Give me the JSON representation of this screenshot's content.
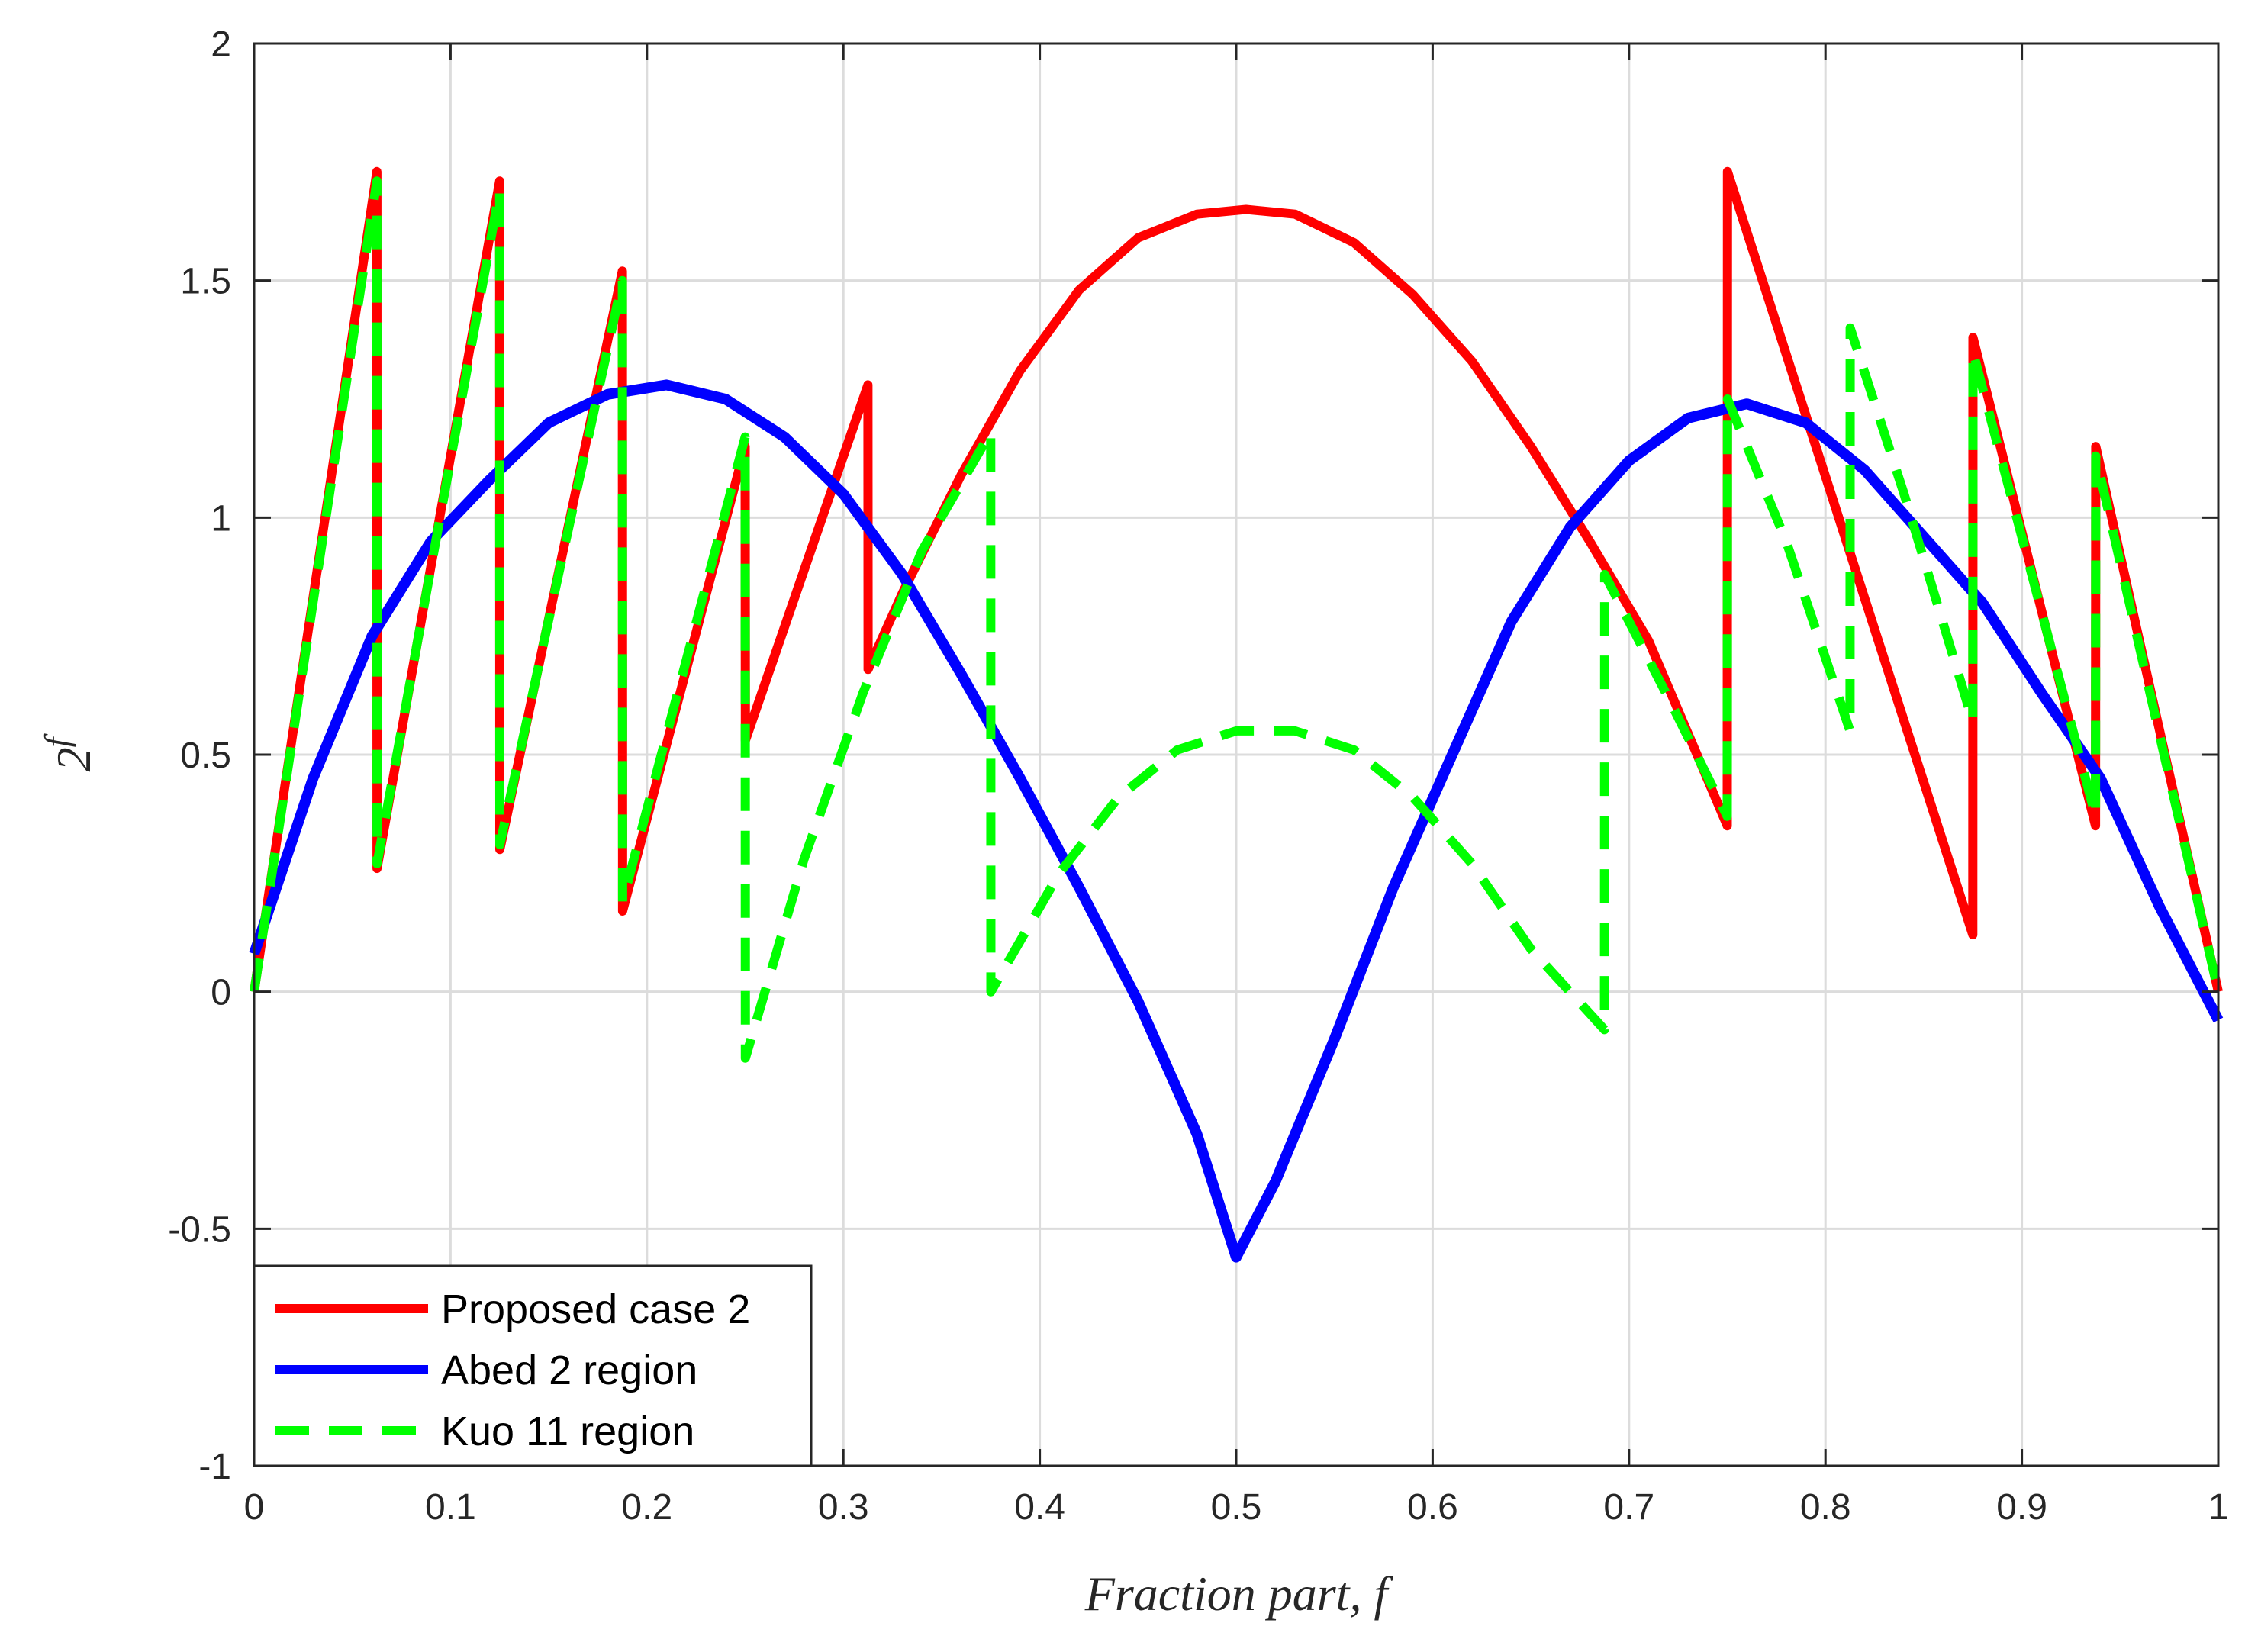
{
  "chart_data": {
    "type": "line",
    "title": "",
    "xlabel": "Fraction part, f",
    "ylabel": "2",
    "ylabel_superscript": "f",
    "xlim": [
      0,
      1
    ],
    "ylim": [
      -1,
      2
    ],
    "xticks": [
      0,
      0.1,
      0.2,
      0.3,
      0.4,
      0.5,
      0.6,
      0.7,
      0.8,
      0.9,
      1
    ],
    "xtick_labels": [
      "0",
      "0.1",
      "0.2",
      "0.3",
      "0.4",
      "0.5",
      "0.6",
      "0.7",
      "0.8",
      "0.9",
      "1"
    ],
    "yticks": [
      -1,
      -0.5,
      0,
      0.5,
      1,
      1.5,
      2
    ],
    "ytick_labels": [
      "-1",
      "-0.5",
      "0",
      "0.5",
      "1",
      "1.5",
      "2"
    ],
    "grid": true,
    "legend_position": "bottom-left",
    "series": [
      {
        "name": "Proposed case 2",
        "color": "#ff0000",
        "style": "solid",
        "x": [
          0,
          0.0625,
          0.0626,
          0.125,
          0.1251,
          0.1875,
          0.1876,
          0.25,
          0.2501,
          0.3125,
          0.3126,
          0.33,
          0.36,
          0.39,
          0.42,
          0.45,
          0.48,
          0.505,
          0.53,
          0.56,
          0.59,
          0.62,
          0.65,
          0.68,
          0.71,
          0.75,
          0.7501,
          0.875,
          0.8751,
          0.9375,
          0.9376,
          1.0
        ],
        "y": [
          0,
          1.73,
          0.26,
          1.71,
          0.3,
          1.52,
          0.17,
          1.15,
          0.53,
          1.28,
          0.68,
          0.84,
          1.09,
          1.31,
          1.48,
          1.59,
          1.64,
          1.65,
          1.64,
          1.58,
          1.47,
          1.33,
          1.15,
          0.95,
          0.74,
          0.35,
          1.73,
          0.12,
          1.38,
          0.35,
          1.15,
          0.0
        ]
      },
      {
        "name": "Abed 2 region",
        "color": "#0000ff",
        "style": "solid",
        "x": [
          0.0,
          0.03,
          0.06,
          0.09,
          0.12,
          0.15,
          0.18,
          0.21,
          0.24,
          0.27,
          0.3,
          0.33,
          0.36,
          0.39,
          0.42,
          0.45,
          0.48,
          0.5,
          0.52,
          0.55,
          0.58,
          0.61,
          0.64,
          0.67,
          0.7,
          0.73,
          0.76,
          0.79,
          0.82,
          0.85,
          0.88,
          0.91,
          0.94,
          0.97,
          1.0
        ],
        "y": [
          0.08,
          0.45,
          0.75,
          0.95,
          1.08,
          1.2,
          1.26,
          1.28,
          1.25,
          1.17,
          1.05,
          0.88,
          0.67,
          0.45,
          0.22,
          -0.02,
          -0.3,
          -0.56,
          -0.4,
          -0.1,
          0.22,
          0.5,
          0.78,
          0.98,
          1.12,
          1.21,
          1.24,
          1.2,
          1.1,
          0.96,
          0.82,
          0.63,
          0.45,
          0.18,
          -0.06
        ]
      },
      {
        "name": "Kuo 11 region",
        "color": "#00ff00",
        "style": "dashed",
        "x": [
          0,
          0.0625,
          0.0626,
          0.125,
          0.1251,
          0.1875,
          0.1876,
          0.25,
          0.2501,
          0.28,
          0.31,
          0.34,
          0.375,
          0.3751,
          0.41,
          0.44,
          0.47,
          0.5,
          0.53,
          0.56,
          0.59,
          0.62,
          0.65,
          0.6875,
          0.6876,
          0.72,
          0.75,
          0.7501,
          0.78,
          0.8125,
          0.8126,
          0.84,
          0.875,
          0.8751,
          0.9375,
          0.9376,
          1.0
        ],
        "y": [
          0,
          1.71,
          0.27,
          1.69,
          0.31,
          1.5,
          0.19,
          1.17,
          -0.14,
          0.28,
          0.63,
          0.93,
          1.18,
          0.0,
          0.25,
          0.41,
          0.51,
          0.55,
          0.55,
          0.51,
          0.41,
          0.27,
          0.09,
          -0.08,
          0.88,
          0.62,
          0.37,
          1.25,
          0.95,
          0.55,
          1.4,
          1.05,
          0.57,
          1.35,
          0.37,
          1.13,
          0.0
        ]
      }
    ]
  }
}
